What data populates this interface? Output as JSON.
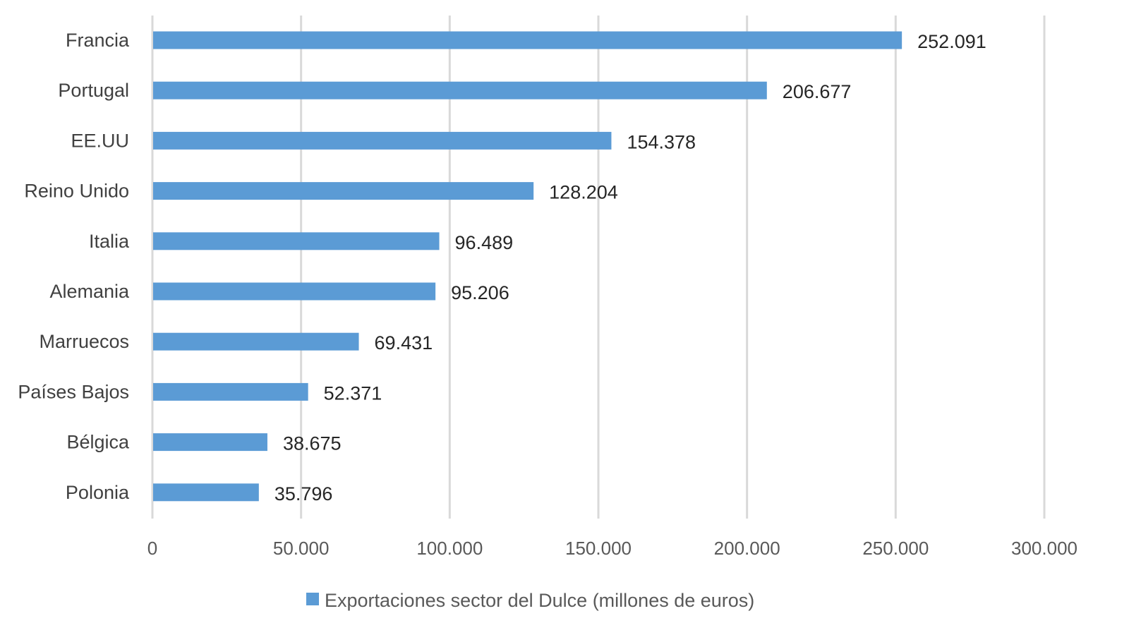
{
  "chart_data": {
    "type": "bar",
    "orientation": "horizontal",
    "title": "",
    "xlabel": "",
    "ylabel": "",
    "categories": [
      "Francia",
      "Portugal",
      "EE.UU",
      "Reino Unido",
      "Italia",
      "Alemania",
      "Marruecos",
      "Países Bajos",
      "Bélgica",
      "Polonia"
    ],
    "series": [
      {
        "name": "Exportaciones sector del Dulce (millones de euros)",
        "color": "#5B9BD5",
        "values": [
          252091,
          206677,
          154378,
          128204,
          96489,
          95206,
          69431,
          52371,
          38675,
          35796
        ],
        "value_labels": [
          "252.091",
          "206.677",
          "154.378",
          "128.204",
          "96.489",
          "95.206",
          "69.431",
          "52.371",
          "38.675",
          "35.796"
        ]
      }
    ],
    "xlim": [
      0,
      300000
    ],
    "x_ticks": [
      0,
      50000,
      100000,
      150000,
      200000,
      250000,
      300000
    ],
    "x_tick_labels": [
      "0",
      "50.000",
      "100.000",
      "150.000",
      "200.000",
      "250.000",
      "300.000"
    ],
    "grid": true,
    "gridline_color": "#D9D9D9",
    "legend": {
      "position": "bottom",
      "entries": [
        "Exportaciones sector del Dulce (millones de euros)"
      ]
    }
  }
}
